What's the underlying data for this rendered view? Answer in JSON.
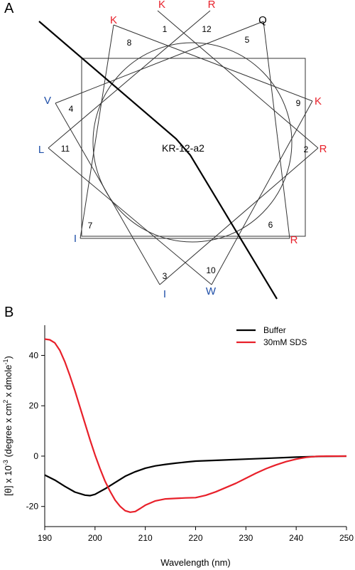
{
  "panels": {
    "a_label": "A",
    "b_label": "B"
  },
  "wheel": {
    "center_label": "KR-12-a2",
    "hydrophilic_color": "#e8202a",
    "hydrophobic_color": "#1f4fa8",
    "residues": [
      {
        "pos": "1",
        "aa": "K",
        "type": "hydrophilic"
      },
      {
        "pos": "2",
        "aa": "R",
        "type": "hydrophilic"
      },
      {
        "pos": "3",
        "aa": "I",
        "type": "hydrophobic"
      },
      {
        "pos": "4",
        "aa": "V",
        "type": "hydrophobic"
      },
      {
        "pos": "5",
        "aa": "Q",
        "type": "neutral"
      },
      {
        "pos": "6",
        "aa": "R",
        "type": "hydrophilic"
      },
      {
        "pos": "7",
        "aa": "I",
        "type": "hydrophobic"
      },
      {
        "pos": "8",
        "aa": "K",
        "type": "hydrophilic"
      },
      {
        "pos": "9",
        "aa": "K",
        "type": "hydrophilic"
      },
      {
        "pos": "10",
        "aa": "W",
        "type": "hydrophobic"
      },
      {
        "pos": "11",
        "aa": "L",
        "type": "hydrophobic"
      },
      {
        "pos": "12",
        "aa": "R",
        "type": "hydrophilic"
      }
    ]
  },
  "chart_data": {
    "type": "line",
    "xlabel": "Wavelength (nm)",
    "ylabel_prefix": "[θ] x 10",
    "ylabel_exp": "-3",
    "ylabel_mid": " (degree x cm",
    "ylabel_exp2": "2",
    "ylabel_mid2": " x dmole",
    "ylabel_exp3": "-1",
    "ylabel_suffix": ")",
    "xlim": [
      190,
      250
    ],
    "ylim": [
      -28,
      52
    ],
    "xticks": [
      190,
      200,
      210,
      220,
      230,
      240,
      250
    ],
    "yticks": [
      -20,
      0,
      20,
      40
    ],
    "legend_position": "top-right",
    "series": [
      {
        "name": "Buffer",
        "color": "#000000",
        "x": [
          190,
          192,
          194,
          196,
          198,
          199,
          200,
          202,
          204,
          206,
          208,
          210,
          212,
          214,
          216,
          218,
          220,
          225,
          230,
          235,
          240,
          245,
          250
        ],
        "y": [
          -7.5,
          -9.5,
          -12,
          -14.3,
          -15.5,
          -15.7,
          -15.2,
          -13,
          -10.5,
          -8,
          -6.2,
          -4.8,
          -3.9,
          -3.3,
          -2.8,
          -2.4,
          -2,
          -1.6,
          -1.2,
          -0.8,
          -0.4,
          -0.1,
          0
        ]
      },
      {
        "name": "30mM SDS",
        "color": "#e8202a",
        "x": [
          190,
          191,
          192,
          193,
          194,
          195,
          196,
          197,
          198,
          199,
          200,
          201,
          202,
          203,
          204,
          205,
          206,
          207,
          208,
          209,
          210,
          212,
          214,
          216,
          218,
          220,
          222,
          224,
          226,
          228,
          230,
          232,
          234,
          236,
          238,
          240,
          242,
          244,
          246,
          248,
          250
        ],
        "y": [
          46.5,
          46.2,
          45,
          42,
          37.5,
          32,
          26,
          19.5,
          13,
          6.5,
          0.5,
          -5,
          -10,
          -14,
          -17.5,
          -20,
          -21.7,
          -22.3,
          -22,
          -20.8,
          -19.5,
          -17.8,
          -17,
          -16.8,
          -16.6,
          -16.5,
          -15.6,
          -14.2,
          -12.5,
          -10.8,
          -8.8,
          -6.8,
          -5,
          -3.5,
          -2.2,
          -1.2,
          -0.5,
          -0.1,
          0,
          0,
          0
        ]
      }
    ]
  }
}
